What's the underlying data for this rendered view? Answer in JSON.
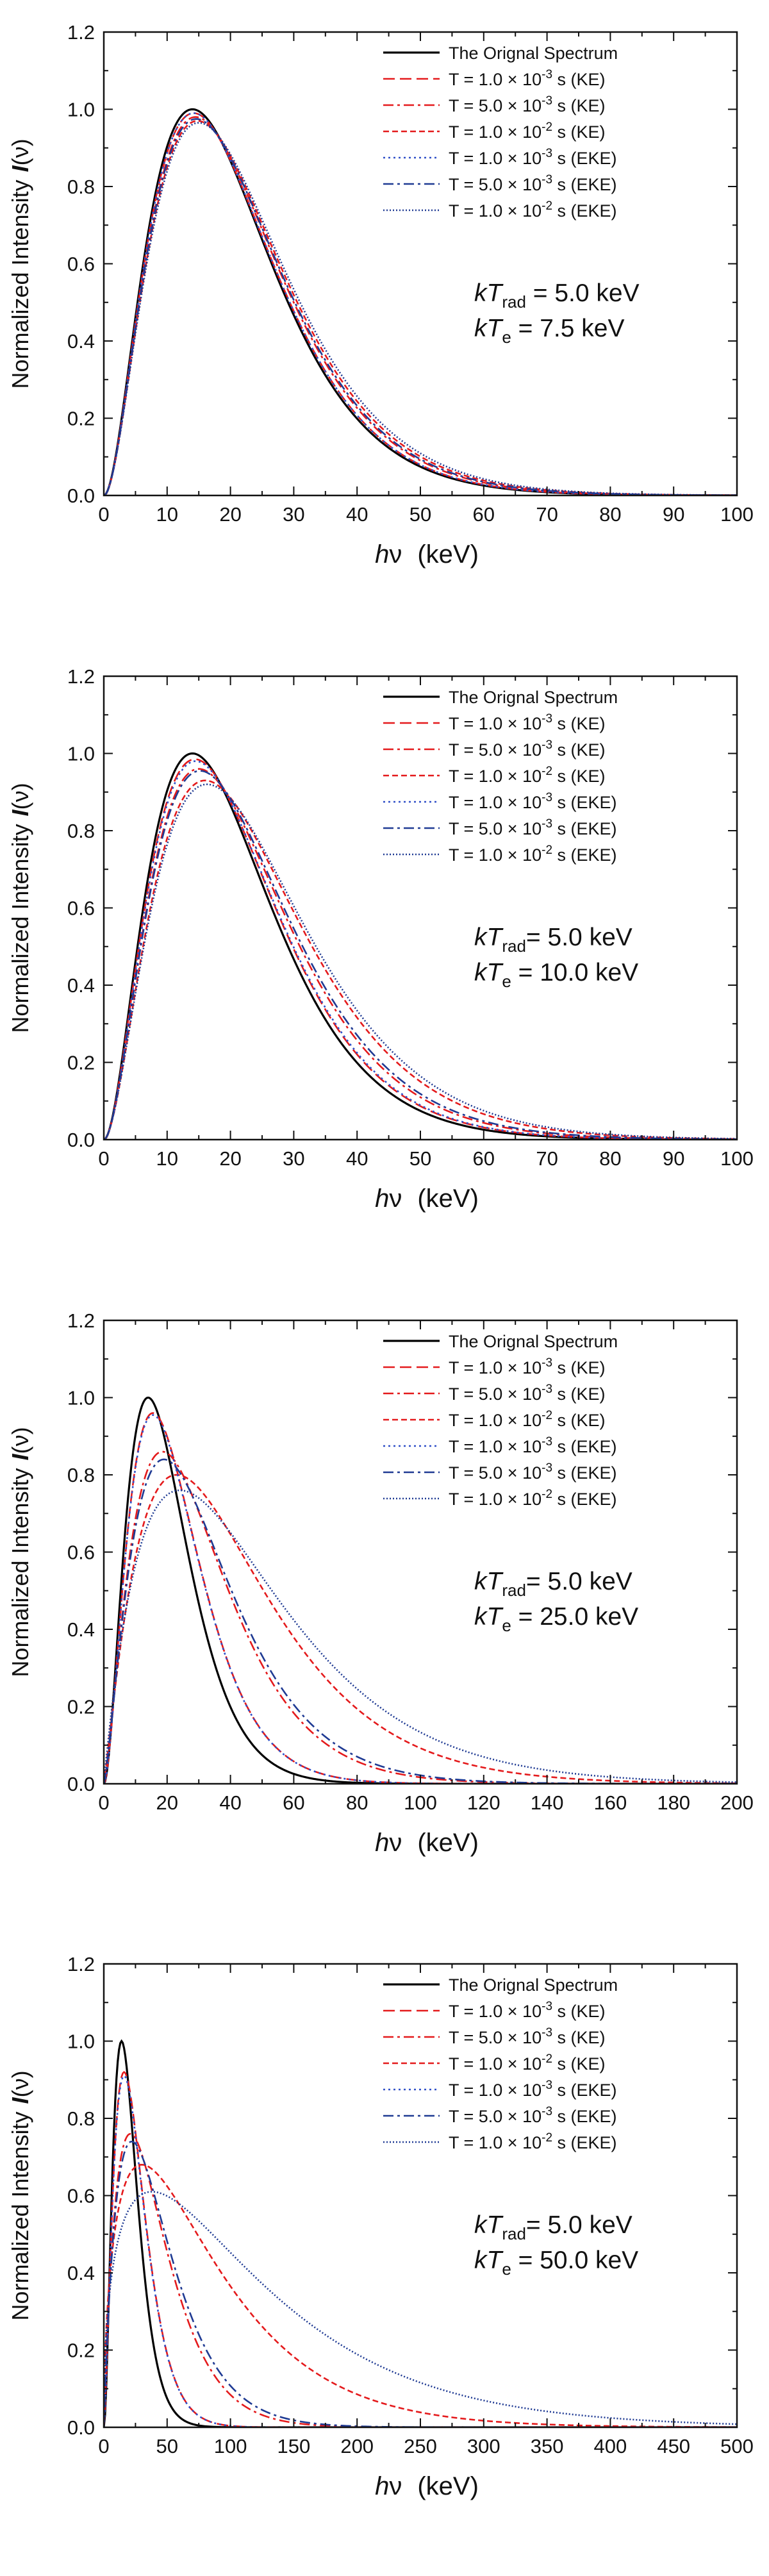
{
  "chart_data": [
    {
      "type": "line",
      "ylabel_main": "Normalized Intensity",
      "ylabel_symbol": "I",
      "ylabel_arg": "(ν)",
      "xlabel_symbol": "h",
      "xlabel_nu": "ν",
      "xlabel_unit": "(keV)",
      "xlim": [
        0,
        100
      ],
      "ylim": [
        0,
        1.2
      ],
      "x_ticks": [
        "0",
        "10",
        "20",
        "30",
        "40",
        "50",
        "60",
        "70",
        "80",
        "90",
        "100"
      ],
      "y_ticks": [
        "0.0",
        "0.2",
        "0.4",
        "0.6",
        "0.8",
        "1.0",
        "1.2"
      ],
      "annotation": {
        "line1_k": "k",
        "line1_T": "T",
        "line1_sub": "rad",
        "line1_value": " = 5.0 keV",
        "line2_k": "k",
        "line2_T": "T",
        "line2_sub": "e",
        "line2_value": " = 7.5 keV"
      },
      "legend": [
        {
          "label": "The Orignal Spectrum"
        },
        {
          "pre": "T = 1.0 × 10",
          "exp": "-3",
          "post": " s (KE)"
        },
        {
          "pre": "T = 5.0 × 10",
          "exp": "-3",
          "post": " s (KE)"
        },
        {
          "pre": "T = 1.0 × 10",
          "exp": "-2",
          "post": " s (KE)"
        },
        {
          "pre": "T = 1.0 × 10",
          "exp": "-3",
          "post": " s (EKE)"
        },
        {
          "pre": "T = 5.0 × 10",
          "exp": "-3",
          "post": " s (EKE)"
        },
        {
          "pre": "T = 1.0 × 10",
          "exp": "-2",
          "post": " s (EKE)"
        }
      ],
      "series": [
        {
          "name": "The Orignal Spectrum",
          "peak_x": 14.0,
          "peak_y": 1.0,
          "shape": 2.0,
          "color": "#000000",
          "dash": "solid"
        },
        {
          "name": "T = 1.0 × 10^-3 s (KE)",
          "peak_x": 14.2,
          "peak_y": 0.99,
          "shape": 2.0,
          "color": "#e41a1c",
          "dash": "dash"
        },
        {
          "name": "T = 5.0 × 10^-3 s (KE)",
          "peak_x": 14.5,
          "peak_y": 0.98,
          "shape": 1.97,
          "color": "#e41a1c",
          "dash": "dashdot"
        },
        {
          "name": "T = 1.0 × 10^-2 s (KE)",
          "peak_x": 14.8,
          "peak_y": 0.97,
          "shape": 1.95,
          "color": "#e41a1c",
          "dash": "shortdash"
        },
        {
          "name": "T = 1.0 × 10^-3 s (EKE)",
          "peak_x": 14.2,
          "peak_y": 0.99,
          "shape": 2.0,
          "color": "#3050c8",
          "dash": "dot"
        },
        {
          "name": "T = 5.0 × 10^-3 s (EKE)",
          "peak_x": 14.6,
          "peak_y": 0.975,
          "shape": 1.96,
          "color": "#1f3a93",
          "dash": "dashdot"
        },
        {
          "name": "T = 1.0 × 10^-2 s (EKE)",
          "peak_x": 15.0,
          "peak_y": 0.965,
          "shape": 1.93,
          "color": "#1f3a93",
          "dash": "shortdot"
        }
      ]
    },
    {
      "type": "line",
      "ylabel_main": "Normalized Intensity",
      "ylabel_symbol": "I",
      "ylabel_arg": "(ν)",
      "xlabel_symbol": "h",
      "xlabel_nu": "ν",
      "xlabel_unit": "(keV)",
      "xlim": [
        0,
        100
      ],
      "ylim": [
        0,
        1.2
      ],
      "x_ticks": [
        "0",
        "10",
        "20",
        "30",
        "40",
        "50",
        "60",
        "70",
        "80",
        "90",
        "100"
      ],
      "y_ticks": [
        "0.0",
        "0.2",
        "0.4",
        "0.6",
        "0.8",
        "1.0",
        "1.2"
      ],
      "annotation": {
        "line1_k": "k",
        "line1_T": "T",
        "line1_sub": "rad",
        "line1_value": "= 5.0 keV",
        "line2_k": "k",
        "line2_T": "T",
        "line2_sub": "e",
        "line2_value": " = 10.0 keV"
      },
      "legend": [
        {
          "label": "The Orignal Spectrum"
        },
        {
          "pre": "T = 1.0 × 10",
          "exp": "-3",
          "post": " s (KE)"
        },
        {
          "pre": "T = 5.0 × 10",
          "exp": "-3",
          "post": " s (KE)"
        },
        {
          "pre": "T = 1.0 × 10",
          "exp": "-2",
          "post": " s (KE)"
        },
        {
          "pre": "T = 1.0 × 10",
          "exp": "-3",
          "post": " s (EKE)"
        },
        {
          "pre": "T = 5.0 × 10",
          "exp": "-3",
          "post": " s (EKE)"
        },
        {
          "pre": "T = 1.0 × 10",
          "exp": "-2",
          "post": " s (EKE)"
        }
      ],
      "series": [
        {
          "name": "The Orignal Spectrum",
          "peak_x": 14.0,
          "peak_y": 1.0,
          "shape": 2.0,
          "color": "#000000",
          "dash": "solid"
        },
        {
          "name": "T = 1.0 × 10^-3 s (KE)",
          "peak_x": 14.4,
          "peak_y": 0.985,
          "shape": 1.98,
          "color": "#e41a1c",
          "dash": "dash"
        },
        {
          "name": "T = 5.0 × 10^-3 s (KE)",
          "peak_x": 15.0,
          "peak_y": 0.96,
          "shape": 1.92,
          "color": "#e41a1c",
          "dash": "dashdot"
        },
        {
          "name": "T = 1.0 × 10^-2 s (KE)",
          "peak_x": 16.0,
          "peak_y": 0.93,
          "shape": 1.85,
          "color": "#e41a1c",
          "dash": "shortdash"
        },
        {
          "name": "T = 1.0 × 10^-3 s (EKE)",
          "peak_x": 14.5,
          "peak_y": 0.98,
          "shape": 1.98,
          "color": "#3050c8",
          "dash": "dot"
        },
        {
          "name": "T = 5.0 × 10^-3 s (EKE)",
          "peak_x": 15.2,
          "peak_y": 0.955,
          "shape": 1.9,
          "color": "#1f3a93",
          "dash": "dashdot"
        },
        {
          "name": "T = 1.0 × 10^-2 s (EKE)",
          "peak_x": 16.3,
          "peak_y": 0.92,
          "shape": 1.82,
          "color": "#1f3a93",
          "dash": "shortdot"
        }
      ]
    },
    {
      "type": "line",
      "ylabel_main": "Normalized Intensity",
      "ylabel_symbol": "I",
      "ylabel_arg": "(ν)",
      "xlabel_symbol": "h",
      "xlabel_nu": "ν",
      "xlabel_unit": "(keV)",
      "xlim": [
        0,
        200
      ],
      "ylim": [
        0,
        1.2
      ],
      "x_ticks": [
        "0",
        "20",
        "40",
        "60",
        "80",
        "100",
        "120",
        "140",
        "160",
        "180",
        "200"
      ],
      "y_ticks": [
        "0.0",
        "0.2",
        "0.4",
        "0.6",
        "0.8",
        "1.0",
        "1.2"
      ],
      "annotation": {
        "line1_k": "k",
        "line1_T": "T",
        "line1_sub": "rad",
        "line1_value": "= 5.0 keV",
        "line2_k": "k",
        "line2_T": "T",
        "line2_sub": "e",
        "line2_value": " = 25.0 keV"
      },
      "legend": [
        {
          "label": "The Orignal Spectrum"
        },
        {
          "pre": "T = 1.0 × 10",
          "exp": "-3",
          "post": " s (KE)"
        },
        {
          "pre": "T = 5.0 × 10",
          "exp": "-3",
          "post": " s (KE)"
        },
        {
          "pre": "T = 1.0 × 10",
          "exp": "-2",
          "post": " s (KE)"
        },
        {
          "pre": "T = 1.0 × 10",
          "exp": "-3",
          "post": " s (EKE)"
        },
        {
          "pre": "T = 5.0 × 10",
          "exp": "-3",
          "post": " s (EKE)"
        },
        {
          "pre": "T = 1.0 × 10",
          "exp": "-2",
          "post": " s (EKE)"
        }
      ],
      "series": [
        {
          "name": "The Orignal Spectrum",
          "peak_x": 14.0,
          "peak_y": 1.0,
          "shape": 2.0,
          "color": "#000000",
          "dash": "solid"
        },
        {
          "name": "T = 1.0 × 10^-3 s (KE)",
          "peak_x": 15.5,
          "peak_y": 0.96,
          "shape": 1.85,
          "color": "#e41a1c",
          "dash": "dash"
        },
        {
          "name": "T = 5.0 × 10^-3 s (KE)",
          "peak_x": 18.5,
          "peak_y": 0.86,
          "shape": 1.45,
          "color": "#e41a1c",
          "dash": "dashdot"
        },
        {
          "name": "T = 1.0 × 10^-2 s (KE)",
          "peak_x": 23.0,
          "peak_y": 0.8,
          "shape": 1.15,
          "color": "#e41a1c",
          "dash": "shortdash"
        },
        {
          "name": "T = 1.0 × 10^-3 s (EKE)",
          "peak_x": 15.5,
          "peak_y": 0.955,
          "shape": 1.85,
          "color": "#3050c8",
          "dash": "dot"
        },
        {
          "name": "T = 5.0 × 10^-3 s (EKE)",
          "peak_x": 19.0,
          "peak_y": 0.84,
          "shape": 1.4,
          "color": "#1f3a93",
          "dash": "dashdot"
        },
        {
          "name": "T = 1.0 × 10^-2 s (EKE)",
          "peak_x": 24.0,
          "peak_y": 0.76,
          "shape": 1.0,
          "color": "#1f3a93",
          "dash": "shortdot"
        }
      ]
    },
    {
      "type": "line",
      "ylabel_main": "Normalized Intensity",
      "ylabel_symbol": "I",
      "ylabel_arg": "(ν)",
      "xlabel_symbol": "h",
      "xlabel_nu": "ν",
      "xlabel_unit": "(keV)",
      "xlim": [
        0,
        500
      ],
      "ylim": [
        0,
        1.2
      ],
      "x_ticks": [
        "0",
        "50",
        "100",
        "150",
        "200",
        "250",
        "300",
        "350",
        "400",
        "450",
        "500"
      ],
      "y_ticks": [
        "0.0",
        "0.2",
        "0.4",
        "0.6",
        "0.8",
        "1.0",
        "1.2"
      ],
      "annotation": {
        "line1_k": "k",
        "line1_T": "T",
        "line1_sub": "rad",
        "line1_value": "= 5.0 keV",
        "line2_k": "k",
        "line2_T": "T",
        "line2_sub": "e",
        "line2_value": " = 50.0 keV"
      },
      "legend": [
        {
          "label": "The Orignal Spectrum"
        },
        {
          "pre": "T = 1.0 × 10",
          "exp": "-3",
          "post": " s (KE)"
        },
        {
          "pre": "T = 5.0 × 10",
          "exp": "-3",
          "post": " s (KE)"
        },
        {
          "pre": "T = 1.0 × 10",
          "exp": "-2",
          "post": " s (KE)"
        },
        {
          "pre": "T = 1.0 × 10",
          "exp": "-3",
          "post": " s (EKE)"
        },
        {
          "pre": "T = 5.0 × 10",
          "exp": "-3",
          "post": " s (EKE)"
        },
        {
          "pre": "T = 1.0 × 10",
          "exp": "-2",
          "post": " s (EKE)"
        }
      ],
      "series": [
        {
          "name": "The Orignal Spectrum",
          "peak_x": 14.0,
          "peak_y": 1.0,
          "shape": 2.0,
          "color": "#000000",
          "dash": "solid"
        },
        {
          "name": "T = 1.0 × 10^-3 s (KE)",
          "peak_x": 16.0,
          "peak_y": 0.92,
          "shape": 1.6,
          "color": "#e41a1c",
          "dash": "dash"
        },
        {
          "name": "T = 5.0 × 10^-3 s (KE)",
          "peak_x": 21.0,
          "peak_y": 0.76,
          "shape": 1.0,
          "color": "#e41a1c",
          "dash": "dashdot"
        },
        {
          "name": "T = 1.0 × 10^-2 s (KE)",
          "peak_x": 30.0,
          "peak_y": 0.68,
          "shape": 0.55,
          "color": "#e41a1c",
          "dash": "shortdash"
        },
        {
          "name": "T = 1.0 × 10^-3 s (EKE)",
          "peak_x": 16.0,
          "peak_y": 0.91,
          "shape": 1.6,
          "color": "#3050c8",
          "dash": "dot"
        },
        {
          "name": "T = 5.0 × 10^-3 s (EKE)",
          "peak_x": 22.0,
          "peak_y": 0.74,
          "shape": 0.95,
          "color": "#1f3a93",
          "dash": "dashdot"
        },
        {
          "name": "T = 1.0 × 10^-2 s (EKE)",
          "peak_x": 38.0,
          "peak_y": 0.61,
          "shape": 0.45,
          "color": "#1f3a93",
          "dash": "shortdot"
        }
      ]
    }
  ]
}
